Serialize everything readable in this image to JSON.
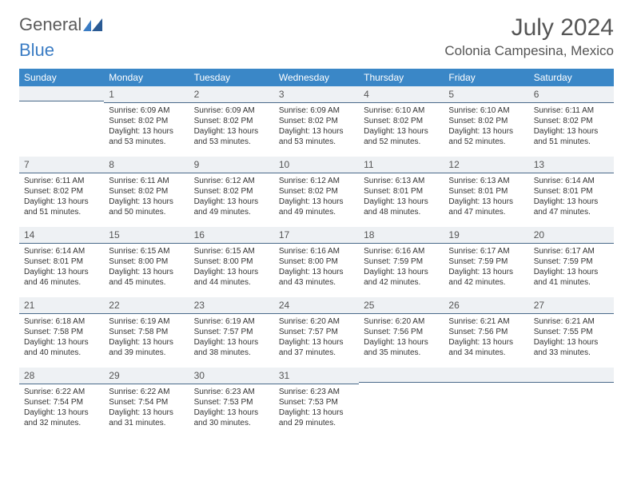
{
  "brand": {
    "part1": "General",
    "part2": "Blue"
  },
  "title": "July 2024",
  "location": "Colonia Campesina, Mexico",
  "colors": {
    "header_bg": "#3a87c7",
    "header_text": "#ffffff",
    "daynum_bg": "#eef1f4",
    "daynum_border": "#4a6a8a",
    "body_text": "#333333",
    "title_text": "#555555",
    "logo_gray": "#5a5a5a",
    "logo_blue": "#3a7cc4"
  },
  "weekdays": [
    "Sunday",
    "Monday",
    "Tuesday",
    "Wednesday",
    "Thursday",
    "Friday",
    "Saturday"
  ],
  "grid": [
    [
      {
        "n": "",
        "sr": "",
        "ss": "",
        "dl": ""
      },
      {
        "n": "1",
        "sr": "Sunrise: 6:09 AM",
        "ss": "Sunset: 8:02 PM",
        "dl": "Daylight: 13 hours and 53 minutes."
      },
      {
        "n": "2",
        "sr": "Sunrise: 6:09 AM",
        "ss": "Sunset: 8:02 PM",
        "dl": "Daylight: 13 hours and 53 minutes."
      },
      {
        "n": "3",
        "sr": "Sunrise: 6:09 AM",
        "ss": "Sunset: 8:02 PM",
        "dl": "Daylight: 13 hours and 53 minutes."
      },
      {
        "n": "4",
        "sr": "Sunrise: 6:10 AM",
        "ss": "Sunset: 8:02 PM",
        "dl": "Daylight: 13 hours and 52 minutes."
      },
      {
        "n": "5",
        "sr": "Sunrise: 6:10 AM",
        "ss": "Sunset: 8:02 PM",
        "dl": "Daylight: 13 hours and 52 minutes."
      },
      {
        "n": "6",
        "sr": "Sunrise: 6:11 AM",
        "ss": "Sunset: 8:02 PM",
        "dl": "Daylight: 13 hours and 51 minutes."
      }
    ],
    [
      {
        "n": "7",
        "sr": "Sunrise: 6:11 AM",
        "ss": "Sunset: 8:02 PM",
        "dl": "Daylight: 13 hours and 51 minutes."
      },
      {
        "n": "8",
        "sr": "Sunrise: 6:11 AM",
        "ss": "Sunset: 8:02 PM",
        "dl": "Daylight: 13 hours and 50 minutes."
      },
      {
        "n": "9",
        "sr": "Sunrise: 6:12 AM",
        "ss": "Sunset: 8:02 PM",
        "dl": "Daylight: 13 hours and 49 minutes."
      },
      {
        "n": "10",
        "sr": "Sunrise: 6:12 AM",
        "ss": "Sunset: 8:02 PM",
        "dl": "Daylight: 13 hours and 49 minutes."
      },
      {
        "n": "11",
        "sr": "Sunrise: 6:13 AM",
        "ss": "Sunset: 8:01 PM",
        "dl": "Daylight: 13 hours and 48 minutes."
      },
      {
        "n": "12",
        "sr": "Sunrise: 6:13 AM",
        "ss": "Sunset: 8:01 PM",
        "dl": "Daylight: 13 hours and 47 minutes."
      },
      {
        "n": "13",
        "sr": "Sunrise: 6:14 AM",
        "ss": "Sunset: 8:01 PM",
        "dl": "Daylight: 13 hours and 47 minutes."
      }
    ],
    [
      {
        "n": "14",
        "sr": "Sunrise: 6:14 AM",
        "ss": "Sunset: 8:01 PM",
        "dl": "Daylight: 13 hours and 46 minutes."
      },
      {
        "n": "15",
        "sr": "Sunrise: 6:15 AM",
        "ss": "Sunset: 8:00 PM",
        "dl": "Daylight: 13 hours and 45 minutes."
      },
      {
        "n": "16",
        "sr": "Sunrise: 6:15 AM",
        "ss": "Sunset: 8:00 PM",
        "dl": "Daylight: 13 hours and 44 minutes."
      },
      {
        "n": "17",
        "sr": "Sunrise: 6:16 AM",
        "ss": "Sunset: 8:00 PM",
        "dl": "Daylight: 13 hours and 43 minutes."
      },
      {
        "n": "18",
        "sr": "Sunrise: 6:16 AM",
        "ss": "Sunset: 7:59 PM",
        "dl": "Daylight: 13 hours and 42 minutes."
      },
      {
        "n": "19",
        "sr": "Sunrise: 6:17 AM",
        "ss": "Sunset: 7:59 PM",
        "dl": "Daylight: 13 hours and 42 minutes."
      },
      {
        "n": "20",
        "sr": "Sunrise: 6:17 AM",
        "ss": "Sunset: 7:59 PM",
        "dl": "Daylight: 13 hours and 41 minutes."
      }
    ],
    [
      {
        "n": "21",
        "sr": "Sunrise: 6:18 AM",
        "ss": "Sunset: 7:58 PM",
        "dl": "Daylight: 13 hours and 40 minutes."
      },
      {
        "n": "22",
        "sr": "Sunrise: 6:19 AM",
        "ss": "Sunset: 7:58 PM",
        "dl": "Daylight: 13 hours and 39 minutes."
      },
      {
        "n": "23",
        "sr": "Sunrise: 6:19 AM",
        "ss": "Sunset: 7:57 PM",
        "dl": "Daylight: 13 hours and 38 minutes."
      },
      {
        "n": "24",
        "sr": "Sunrise: 6:20 AM",
        "ss": "Sunset: 7:57 PM",
        "dl": "Daylight: 13 hours and 37 minutes."
      },
      {
        "n": "25",
        "sr": "Sunrise: 6:20 AM",
        "ss": "Sunset: 7:56 PM",
        "dl": "Daylight: 13 hours and 35 minutes."
      },
      {
        "n": "26",
        "sr": "Sunrise: 6:21 AM",
        "ss": "Sunset: 7:56 PM",
        "dl": "Daylight: 13 hours and 34 minutes."
      },
      {
        "n": "27",
        "sr": "Sunrise: 6:21 AM",
        "ss": "Sunset: 7:55 PM",
        "dl": "Daylight: 13 hours and 33 minutes."
      }
    ],
    [
      {
        "n": "28",
        "sr": "Sunrise: 6:22 AM",
        "ss": "Sunset: 7:54 PM",
        "dl": "Daylight: 13 hours and 32 minutes."
      },
      {
        "n": "29",
        "sr": "Sunrise: 6:22 AM",
        "ss": "Sunset: 7:54 PM",
        "dl": "Daylight: 13 hours and 31 minutes."
      },
      {
        "n": "30",
        "sr": "Sunrise: 6:23 AM",
        "ss": "Sunset: 7:53 PM",
        "dl": "Daylight: 13 hours and 30 minutes."
      },
      {
        "n": "31",
        "sr": "Sunrise: 6:23 AM",
        "ss": "Sunset: 7:53 PM",
        "dl": "Daylight: 13 hours and 29 minutes."
      },
      {
        "n": "",
        "sr": "",
        "ss": "",
        "dl": ""
      },
      {
        "n": "",
        "sr": "",
        "ss": "",
        "dl": ""
      },
      {
        "n": "",
        "sr": "",
        "ss": "",
        "dl": ""
      }
    ]
  ]
}
